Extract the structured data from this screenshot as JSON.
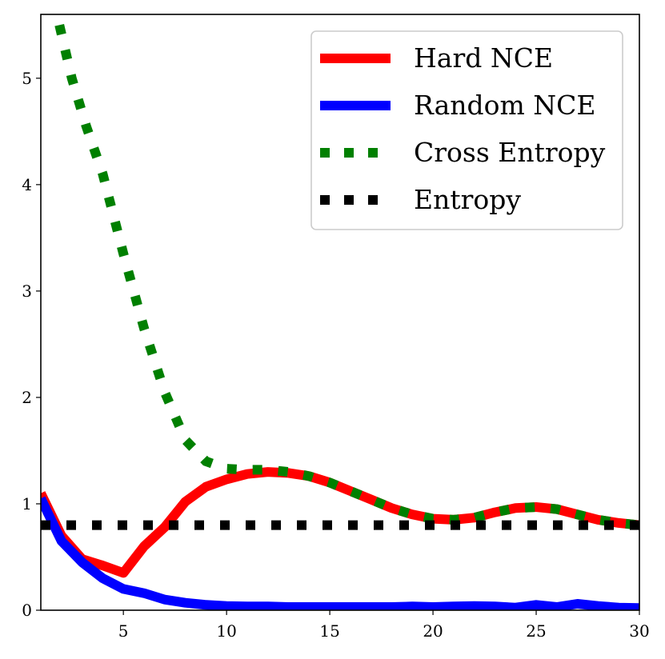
{
  "chart_data": {
    "type": "line",
    "title": "",
    "xlabel": "",
    "ylabel": "",
    "xlim": [
      1,
      30
    ],
    "ylim": [
      0,
      5.6
    ],
    "xticks": [
      5,
      10,
      15,
      20,
      25,
      30
    ],
    "yticks": [
      0,
      1,
      2,
      3,
      4,
      5
    ],
    "legend_position": "top-right",
    "grid": false,
    "series": [
      {
        "name": "Hard NCE",
        "color": "#ff0000",
        "style": "solid",
        "x": [
          1,
          2,
          3,
          4,
          5,
          6,
          7,
          8,
          9,
          10,
          11,
          12,
          13,
          14,
          15,
          16,
          17,
          18,
          19,
          20,
          21,
          22,
          23,
          24,
          25,
          26,
          27,
          28,
          29,
          30
        ],
        "y": [
          1.1,
          0.7,
          0.48,
          0.42,
          0.35,
          0.6,
          0.78,
          1.02,
          1.16,
          1.23,
          1.28,
          1.3,
          1.29,
          1.26,
          1.2,
          1.12,
          1.04,
          0.96,
          0.9,
          0.86,
          0.85,
          0.87,
          0.92,
          0.96,
          0.97,
          0.95,
          0.9,
          0.85,
          0.82,
          0.8
        ]
      },
      {
        "name": "Random NCE",
        "color": "#0000ff",
        "style": "solid",
        "x": [
          1,
          2,
          3,
          4,
          5,
          6,
          7,
          8,
          9,
          10,
          11,
          12,
          13,
          14,
          15,
          16,
          17,
          18,
          19,
          20,
          21,
          22,
          23,
          24,
          25,
          26,
          27,
          28,
          29,
          30
        ],
        "y": [
          1.05,
          0.65,
          0.45,
          0.3,
          0.2,
          0.16,
          0.1,
          0.07,
          0.05,
          0.04,
          0.035,
          0.035,
          0.03,
          0.03,
          0.03,
          0.03,
          0.03,
          0.03,
          0.035,
          0.03,
          0.035,
          0.04,
          0.035,
          0.025,
          0.05,
          0.03,
          0.06,
          0.04,
          0.025,
          0.02
        ]
      },
      {
        "name": "Cross Entropy",
        "color": "#008000",
        "style": "dotted",
        "x": [
          1.9,
          2.5,
          3.2,
          4,
          5,
          6,
          7,
          8,
          9,
          10,
          11,
          12,
          13,
          14,
          15,
          16,
          17,
          18,
          19,
          20,
          21,
          22,
          23,
          24,
          25,
          26,
          27,
          28,
          29,
          30
        ],
        "y": [
          5.5,
          5.0,
          4.55,
          4.1,
          3.35,
          2.65,
          2.05,
          1.6,
          1.4,
          1.33,
          1.32,
          1.32,
          1.3,
          1.26,
          1.2,
          1.12,
          1.04,
          0.96,
          0.9,
          0.86,
          0.85,
          0.87,
          0.92,
          0.96,
          0.97,
          0.95,
          0.9,
          0.85,
          0.82,
          0.8
        ]
      },
      {
        "name": "Entropy",
        "color": "#000000",
        "style": "dotted",
        "x": [
          1,
          30
        ],
        "y": [
          0.8,
          0.8
        ]
      }
    ]
  }
}
